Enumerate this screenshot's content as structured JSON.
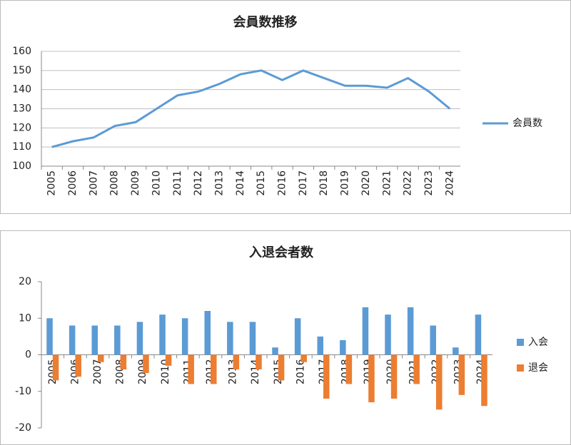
{
  "chart_data": [
    {
      "type": "line",
      "title": "会員数推移",
      "categories": [
        "2005",
        "2006",
        "2007",
        "2008",
        "2009",
        "2010",
        "2011",
        "2012",
        "2013",
        "2014",
        "2015",
        "2016",
        "2017",
        "2018",
        "2019",
        "2020",
        "2021",
        "2022",
        "2023",
        "2024"
      ],
      "series": [
        {
          "name": "会員数",
          "color": "#5b9bd5",
          "values": [
            110,
            113,
            115,
            121,
            123,
            130,
            137,
            139,
            143,
            148,
            150,
            145,
            150,
            146,
            142,
            142,
            141,
            146,
            139,
            130
          ]
        }
      ],
      "ylim": [
        100,
        160
      ],
      "yticks": [
        100,
        110,
        120,
        130,
        140,
        150,
        160
      ],
      "grid": true,
      "legend": "right"
    },
    {
      "type": "bar",
      "title": "入退会者数",
      "categories": [
        "2005",
        "2006",
        "2007",
        "2008",
        "2009",
        "2010",
        "2011",
        "2012",
        "2013",
        "2014",
        "2015",
        "2016",
        "2017",
        "2018",
        "2019",
        "2020",
        "2021",
        "2022",
        "2023",
        "2024"
      ],
      "series": [
        {
          "name": "入会",
          "color": "#5b9bd5",
          "values": [
            10,
            8,
            8,
            8,
            9,
            11,
            10,
            12,
            9,
            9,
            2,
            10,
            5,
            4,
            13,
            11,
            13,
            8,
            2,
            11
          ]
        },
        {
          "name": "退会",
          "color": "#ed7d31",
          "values": [
            -7,
            -6,
            -2,
            -4,
            -5,
            -3,
            -8,
            -8,
            -4,
            -4,
            -7,
            -2,
            -12,
            -8,
            -13,
            -12,
            -8,
            -15,
            -11,
            -14
          ]
        }
      ],
      "ylim": [
        -20,
        20
      ],
      "yticks": [
        -20,
        -10,
        0,
        10,
        20
      ],
      "grid": false,
      "legend": "right"
    }
  ]
}
